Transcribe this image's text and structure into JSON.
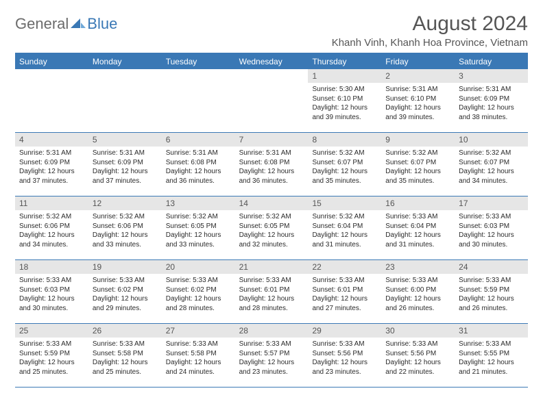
{
  "logo": {
    "text1": "General",
    "text2": "Blue"
  },
  "title": "August 2024",
  "location": "Khanh Vinh, Khanh Hoa Province, Vietnam",
  "colors": {
    "accent": "#3a78b5",
    "band": "#e6e6e6",
    "text": "#333333",
    "title": "#555555"
  },
  "dayHeaders": [
    "Sunday",
    "Monday",
    "Tuesday",
    "Wednesday",
    "Thursday",
    "Friday",
    "Saturday"
  ],
  "weeks": [
    [
      {
        "empty": true
      },
      {
        "empty": true
      },
      {
        "empty": true
      },
      {
        "empty": true
      },
      {
        "day": "1",
        "sunrise": "Sunrise: 5:30 AM",
        "sunset": "Sunset: 6:10 PM",
        "dl1": "Daylight: 12 hours",
        "dl2": "and 39 minutes."
      },
      {
        "day": "2",
        "sunrise": "Sunrise: 5:31 AM",
        "sunset": "Sunset: 6:10 PM",
        "dl1": "Daylight: 12 hours",
        "dl2": "and 39 minutes."
      },
      {
        "day": "3",
        "sunrise": "Sunrise: 5:31 AM",
        "sunset": "Sunset: 6:09 PM",
        "dl1": "Daylight: 12 hours",
        "dl2": "and 38 minutes."
      }
    ],
    [
      {
        "day": "4",
        "sunrise": "Sunrise: 5:31 AM",
        "sunset": "Sunset: 6:09 PM",
        "dl1": "Daylight: 12 hours",
        "dl2": "and 37 minutes."
      },
      {
        "day": "5",
        "sunrise": "Sunrise: 5:31 AM",
        "sunset": "Sunset: 6:09 PM",
        "dl1": "Daylight: 12 hours",
        "dl2": "and 37 minutes."
      },
      {
        "day": "6",
        "sunrise": "Sunrise: 5:31 AM",
        "sunset": "Sunset: 6:08 PM",
        "dl1": "Daylight: 12 hours",
        "dl2": "and 36 minutes."
      },
      {
        "day": "7",
        "sunrise": "Sunrise: 5:31 AM",
        "sunset": "Sunset: 6:08 PM",
        "dl1": "Daylight: 12 hours",
        "dl2": "and 36 minutes."
      },
      {
        "day": "8",
        "sunrise": "Sunrise: 5:32 AM",
        "sunset": "Sunset: 6:07 PM",
        "dl1": "Daylight: 12 hours",
        "dl2": "and 35 minutes."
      },
      {
        "day": "9",
        "sunrise": "Sunrise: 5:32 AM",
        "sunset": "Sunset: 6:07 PM",
        "dl1": "Daylight: 12 hours",
        "dl2": "and 35 minutes."
      },
      {
        "day": "10",
        "sunrise": "Sunrise: 5:32 AM",
        "sunset": "Sunset: 6:07 PM",
        "dl1": "Daylight: 12 hours",
        "dl2": "and 34 minutes."
      }
    ],
    [
      {
        "day": "11",
        "sunrise": "Sunrise: 5:32 AM",
        "sunset": "Sunset: 6:06 PM",
        "dl1": "Daylight: 12 hours",
        "dl2": "and 34 minutes."
      },
      {
        "day": "12",
        "sunrise": "Sunrise: 5:32 AM",
        "sunset": "Sunset: 6:06 PM",
        "dl1": "Daylight: 12 hours",
        "dl2": "and 33 minutes."
      },
      {
        "day": "13",
        "sunrise": "Sunrise: 5:32 AM",
        "sunset": "Sunset: 6:05 PM",
        "dl1": "Daylight: 12 hours",
        "dl2": "and 33 minutes."
      },
      {
        "day": "14",
        "sunrise": "Sunrise: 5:32 AM",
        "sunset": "Sunset: 6:05 PM",
        "dl1": "Daylight: 12 hours",
        "dl2": "and 32 minutes."
      },
      {
        "day": "15",
        "sunrise": "Sunrise: 5:32 AM",
        "sunset": "Sunset: 6:04 PM",
        "dl1": "Daylight: 12 hours",
        "dl2": "and 31 minutes."
      },
      {
        "day": "16",
        "sunrise": "Sunrise: 5:33 AM",
        "sunset": "Sunset: 6:04 PM",
        "dl1": "Daylight: 12 hours",
        "dl2": "and 31 minutes."
      },
      {
        "day": "17",
        "sunrise": "Sunrise: 5:33 AM",
        "sunset": "Sunset: 6:03 PM",
        "dl1": "Daylight: 12 hours",
        "dl2": "and 30 minutes."
      }
    ],
    [
      {
        "day": "18",
        "sunrise": "Sunrise: 5:33 AM",
        "sunset": "Sunset: 6:03 PM",
        "dl1": "Daylight: 12 hours",
        "dl2": "and 30 minutes."
      },
      {
        "day": "19",
        "sunrise": "Sunrise: 5:33 AM",
        "sunset": "Sunset: 6:02 PM",
        "dl1": "Daylight: 12 hours",
        "dl2": "and 29 minutes."
      },
      {
        "day": "20",
        "sunrise": "Sunrise: 5:33 AM",
        "sunset": "Sunset: 6:02 PM",
        "dl1": "Daylight: 12 hours",
        "dl2": "and 28 minutes."
      },
      {
        "day": "21",
        "sunrise": "Sunrise: 5:33 AM",
        "sunset": "Sunset: 6:01 PM",
        "dl1": "Daylight: 12 hours",
        "dl2": "and 28 minutes."
      },
      {
        "day": "22",
        "sunrise": "Sunrise: 5:33 AM",
        "sunset": "Sunset: 6:01 PM",
        "dl1": "Daylight: 12 hours",
        "dl2": "and 27 minutes."
      },
      {
        "day": "23",
        "sunrise": "Sunrise: 5:33 AM",
        "sunset": "Sunset: 6:00 PM",
        "dl1": "Daylight: 12 hours",
        "dl2": "and 26 minutes."
      },
      {
        "day": "24",
        "sunrise": "Sunrise: 5:33 AM",
        "sunset": "Sunset: 5:59 PM",
        "dl1": "Daylight: 12 hours",
        "dl2": "and 26 minutes."
      }
    ],
    [
      {
        "day": "25",
        "sunrise": "Sunrise: 5:33 AM",
        "sunset": "Sunset: 5:59 PM",
        "dl1": "Daylight: 12 hours",
        "dl2": "and 25 minutes."
      },
      {
        "day": "26",
        "sunrise": "Sunrise: 5:33 AM",
        "sunset": "Sunset: 5:58 PM",
        "dl1": "Daylight: 12 hours",
        "dl2": "and 25 minutes."
      },
      {
        "day": "27",
        "sunrise": "Sunrise: 5:33 AM",
        "sunset": "Sunset: 5:58 PM",
        "dl1": "Daylight: 12 hours",
        "dl2": "and 24 minutes."
      },
      {
        "day": "28",
        "sunrise": "Sunrise: 5:33 AM",
        "sunset": "Sunset: 5:57 PM",
        "dl1": "Daylight: 12 hours",
        "dl2": "and 23 minutes."
      },
      {
        "day": "29",
        "sunrise": "Sunrise: 5:33 AM",
        "sunset": "Sunset: 5:56 PM",
        "dl1": "Daylight: 12 hours",
        "dl2": "and 23 minutes."
      },
      {
        "day": "30",
        "sunrise": "Sunrise: 5:33 AM",
        "sunset": "Sunset: 5:56 PM",
        "dl1": "Daylight: 12 hours",
        "dl2": "and 22 minutes."
      },
      {
        "day": "31",
        "sunrise": "Sunrise: 5:33 AM",
        "sunset": "Sunset: 5:55 PM",
        "dl1": "Daylight: 12 hours",
        "dl2": "and 21 minutes."
      }
    ]
  ]
}
